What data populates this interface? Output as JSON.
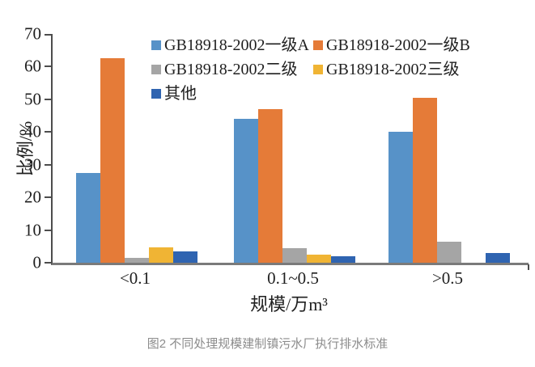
{
  "figure": {
    "caption": "图2 不同处理规模建制镇污水厂执行排水标准",
    "caption_color": "#8c8c8c"
  },
  "chart_data": {
    "type": "bar",
    "title": "",
    "categories": [
      "<0.1",
      "0.1~0.5",
      ">0.5"
    ],
    "series": [
      {
        "name": "GB18918-2002一级A",
        "color": "#5792C8",
        "values": [
          27.5,
          44,
          40
        ]
      },
      {
        "name": "GB18918-2002一级B",
        "color": "#E57B38",
        "values": [
          62.5,
          47,
          50.5
        ]
      },
      {
        "name": "GB18918-2002二级",
        "color": "#A5A5A5",
        "values": [
          1.5,
          4.5,
          6.5
        ]
      },
      {
        "name": "GB18918-2002三级",
        "color": "#F0B434",
        "values": [
          4.8,
          2.5,
          0
        ]
      },
      {
        "name": "其他",
        "color": "#2F64B1",
        "values": [
          3.5,
          2,
          3
        ]
      }
    ],
    "xlabel": "规模/万m³",
    "ylabel": "比例/%",
    "ylim": [
      0,
      70
    ],
    "ytick_step": 10,
    "grid": false,
    "legend_position": "top-inside",
    "axis_color": "#4d4d4d",
    "text_color": "#1f1f1f"
  }
}
